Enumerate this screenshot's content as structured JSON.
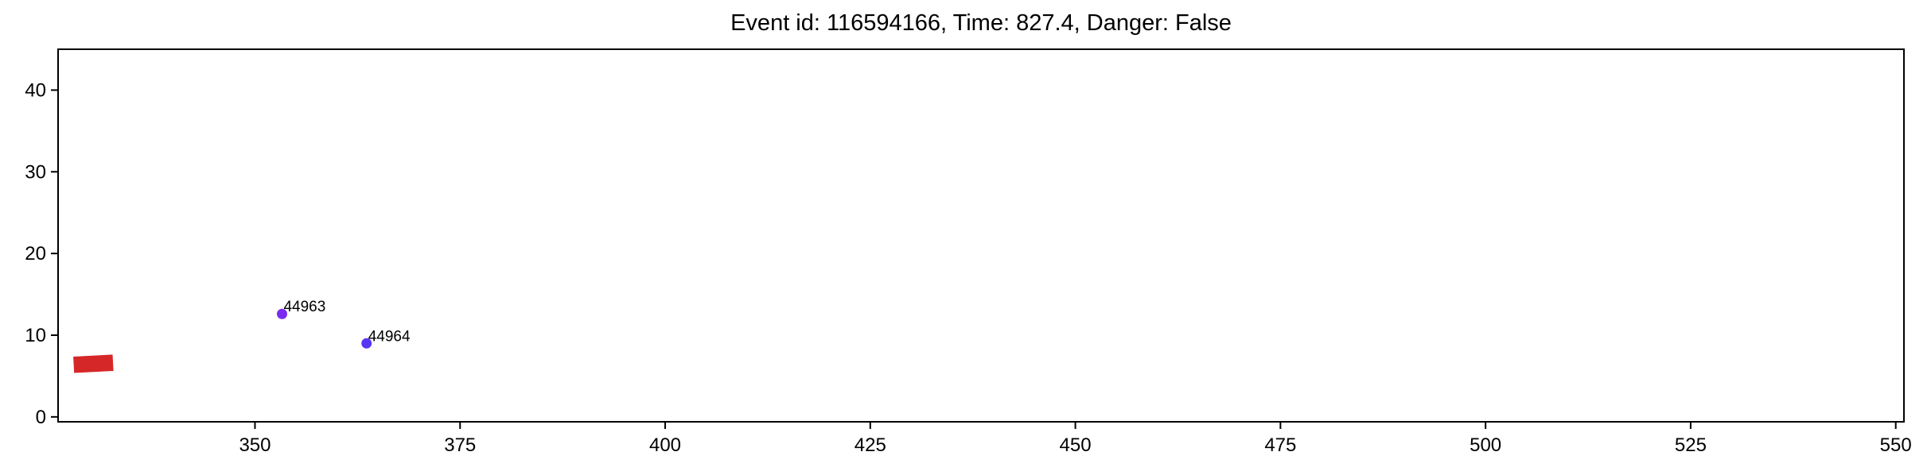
{
  "chart_data": {
    "type": "scatter",
    "title": "Event id: 116594166, Time: 827.4, Danger: False",
    "xlabel": "",
    "ylabel": "",
    "xlim": [
      326,
      551
    ],
    "ylim": [
      -0.6,
      45
    ],
    "x_ticks": [
      350,
      375,
      400,
      425,
      450,
      475,
      500,
      525,
      550
    ],
    "y_ticks": [
      0,
      10,
      20,
      30,
      40
    ],
    "grid": false,
    "points": [
      {
        "label": "44963",
        "x": 353.3,
        "y": 12.6,
        "color": "#7a2bf0"
      },
      {
        "label": "44964",
        "x": 363.6,
        "y": 9.0,
        "color": "#5a34f5"
      }
    ],
    "ego_vehicle": {
      "x": 330.3,
      "y": 6.5,
      "length": 4.8,
      "width": 2.0,
      "heading_deg": 3,
      "color": "#d62728"
    }
  }
}
